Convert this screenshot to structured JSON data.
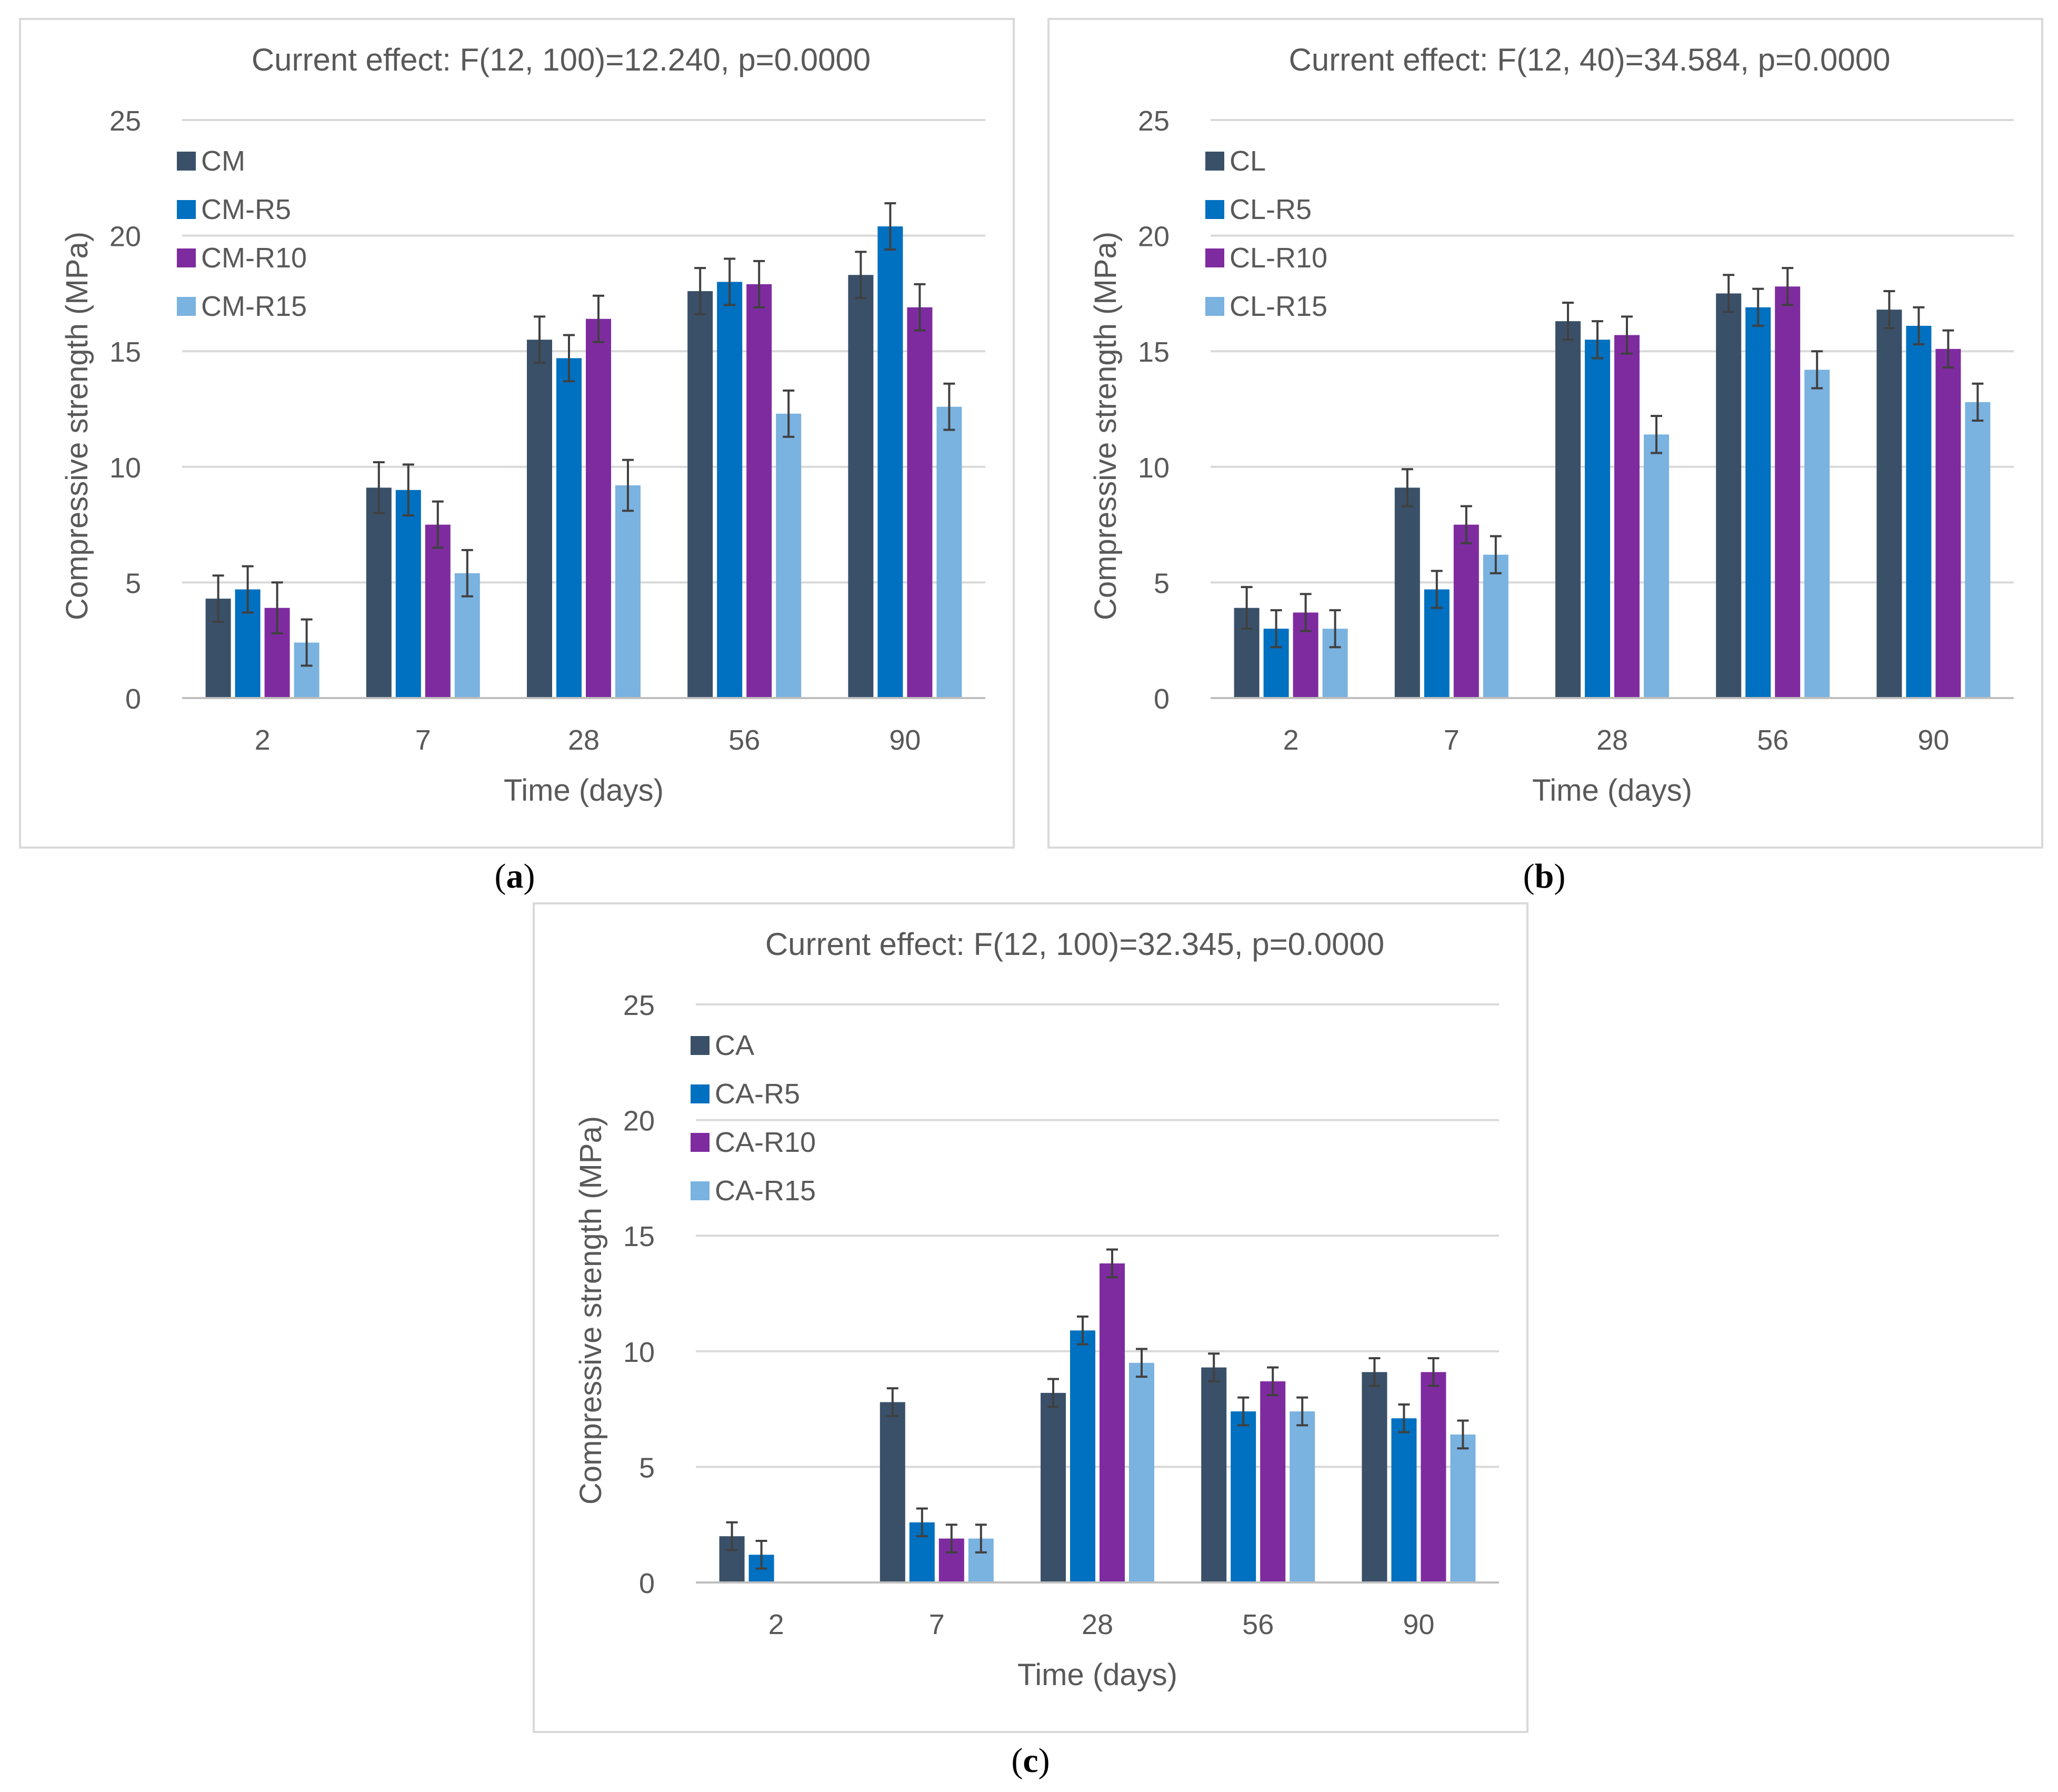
{
  "captions": {
    "a": {
      "open": "(",
      "letter": "a",
      "close": ")"
    },
    "b": {
      "open": "(",
      "letter": "b",
      "close": ")"
    },
    "c": {
      "open": "(",
      "letter": "c",
      "close": ")"
    }
  },
  "chart_data": [
    {
      "panel": "a",
      "type": "bar",
      "title": "Current effect: F(12, 100)=12.240, p=0.0000",
      "xlabel": "Time (days)",
      "ylabel": "Compressive strength (MPa)",
      "ylim": [
        0,
        25
      ],
      "yticks": [
        0,
        5,
        10,
        15,
        20,
        25
      ],
      "grid": true,
      "legend": "top-left",
      "categories": [
        "2",
        "7",
        "28",
        "56",
        "90"
      ],
      "series": [
        {
          "name": "CM",
          "color": "#3a5069",
          "values": [
            4.3,
            9.1,
            15.5,
            17.6,
            18.3
          ],
          "errors": [
            1.0,
            1.1,
            1.0,
            1.0,
            1.0
          ]
        },
        {
          "name": "CM-R5",
          "color": "#0070c0",
          "values": [
            4.7,
            9.0,
            14.7,
            18.0,
            20.4
          ],
          "errors": [
            1.0,
            1.1,
            1.0,
            1.0,
            1.0
          ]
        },
        {
          "name": "CM-R10",
          "color": "#7e2ba0",
          "values": [
            3.9,
            7.5,
            16.4,
            17.9,
            16.9
          ],
          "errors": [
            1.1,
            1.0,
            1.0,
            1.0,
            1.0
          ]
        },
        {
          "name": "CM-R15",
          "color": "#7ab2e0",
          "values": [
            2.4,
            5.4,
            9.2,
            12.3,
            12.6
          ],
          "errors": [
            1.0,
            1.0,
            1.1,
            1.0,
            1.0
          ]
        }
      ]
    },
    {
      "panel": "b",
      "type": "bar",
      "title": "Current effect: F(12, 40)=34.584, p=0.0000",
      "xlabel": "Time (days)",
      "ylabel": "Compressive strength (MPa)",
      "ylim": [
        0,
        25
      ],
      "yticks": [
        0,
        5,
        10,
        15,
        20,
        25
      ],
      "grid": true,
      "legend": "top-left",
      "categories": [
        "2",
        "7",
        "28",
        "56",
        "90"
      ],
      "series": [
        {
          "name": "CL",
          "color": "#3a5069",
          "values": [
            3.9,
            9.1,
            16.3,
            17.5,
            16.8
          ],
          "errors": [
            0.9,
            0.8,
            0.8,
            0.8,
            0.8
          ]
        },
        {
          "name": "CL-R5",
          "color": "#0070c0",
          "values": [
            3.0,
            4.7,
            15.5,
            16.9,
            16.1
          ],
          "errors": [
            0.8,
            0.8,
            0.8,
            0.8,
            0.8
          ]
        },
        {
          "name": "CL-R10",
          "color": "#7e2ba0",
          "values": [
            3.7,
            7.5,
            15.7,
            17.8,
            15.1
          ],
          "errors": [
            0.8,
            0.8,
            0.8,
            0.8,
            0.8
          ]
        },
        {
          "name": "CL-R15",
          "color": "#7ab2e0",
          "values": [
            3.0,
            6.2,
            11.4,
            14.2,
            12.8
          ],
          "errors": [
            0.8,
            0.8,
            0.8,
            0.8,
            0.8
          ]
        }
      ]
    },
    {
      "panel": "c",
      "type": "bar",
      "title": "Current effect: F(12, 100)=32.345, p=0.0000",
      "xlabel": "Time (days)",
      "ylabel": "Compressive strength (MPa)",
      "ylim": [
        0,
        25
      ],
      "yticks": [
        0,
        5,
        10,
        15,
        20,
        25
      ],
      "grid": true,
      "legend": "top-left",
      "categories": [
        "2",
        "7",
        "28",
        "56",
        "90"
      ],
      "series": [
        {
          "name": "CA",
          "color": "#3a5069",
          "values": [
            2.0,
            7.8,
            8.2,
            9.3,
            9.1
          ],
          "errors": [
            0.6,
            0.6,
            0.6,
            0.6,
            0.6
          ]
        },
        {
          "name": "CA-R5",
          "color": "#0070c0",
          "values": [
            1.2,
            2.6,
            10.9,
            7.4,
            7.1
          ],
          "errors": [
            0.6,
            0.6,
            0.6,
            0.6,
            0.6
          ]
        },
        {
          "name": "CA-R10",
          "color": "#7e2ba0",
          "values": [
            0,
            1.9,
            13.8,
            8.7,
            9.1
          ],
          "errors": [
            0,
            0.6,
            0.6,
            0.6,
            0.6
          ]
        },
        {
          "name": "CA-R15",
          "color": "#7ab2e0",
          "values": [
            0,
            1.9,
            9.5,
            7.4,
            6.4
          ],
          "errors": [
            0,
            0.6,
            0.6,
            0.6,
            0.6
          ]
        }
      ]
    }
  ]
}
